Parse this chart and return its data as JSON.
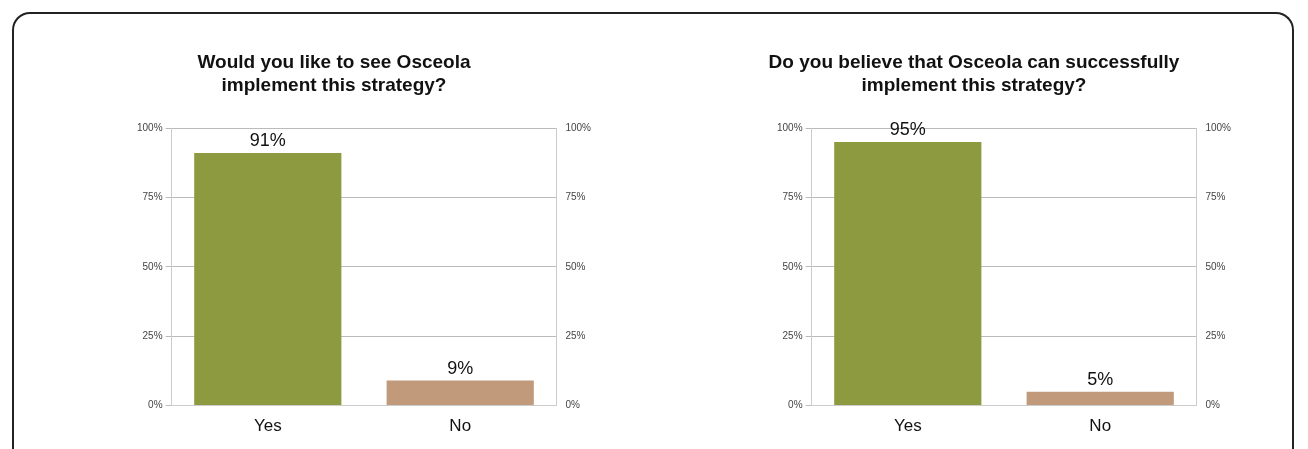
{
  "chart_data": [
    {
      "type": "bar",
      "title": "Would you like to see Osceola implement this strategy?",
      "categories": [
        "Yes",
        "No"
      ],
      "values": [
        91,
        9
      ],
      "colors": [
        "#8e9a40",
        "#c09a7a"
      ],
      "value_labels": [
        "91%",
        "9%"
      ],
      "ylim": [
        0,
        100
      ],
      "yticks": [
        {
          "value": 0,
          "label": "0%"
        },
        {
          "value": 25,
          "label": "25%"
        },
        {
          "value": 50,
          "label": "50%"
        },
        {
          "value": 75,
          "label": "75%"
        },
        {
          "value": 100,
          "label": "100%"
        }
      ],
      "y2lim": [
        0,
        100
      ],
      "y2ticks": [
        {
          "value": 0,
          "label": "0%"
        },
        {
          "value": 25,
          "label": "25%"
        },
        {
          "value": 50,
          "label": "50%"
        },
        {
          "value": 75,
          "label": "75%"
        },
        {
          "value": 100,
          "label": "100%"
        }
      ],
      "grid": "y"
    },
    {
      "type": "bar",
      "title": "Do you believe that Osceola can successfully implement this strategy?",
      "categories": [
        "Yes",
        "No"
      ],
      "values": [
        95,
        5
      ],
      "colors": [
        "#8e9a40",
        "#c09a7a"
      ],
      "value_labels": [
        "95%",
        "5%"
      ],
      "ylim": [
        0,
        100
      ],
      "yticks": [
        {
          "value": 0,
          "label": "0%"
        },
        {
          "value": 25,
          "label": "25%"
        },
        {
          "value": 50,
          "label": "50%"
        },
        {
          "value": 75,
          "label": "75%"
        },
        {
          "value": 100,
          "label": "100%"
        }
      ],
      "y2lim": [
        0,
        100
      ],
      "y2ticks": [
        {
          "value": 0,
          "label": "0%"
        },
        {
          "value": 25,
          "label": "25%"
        },
        {
          "value": 50,
          "label": "50%"
        },
        {
          "value": 75,
          "label": "75%"
        },
        {
          "value": 100,
          "label": "100%"
        }
      ],
      "grid": "y"
    }
  ]
}
